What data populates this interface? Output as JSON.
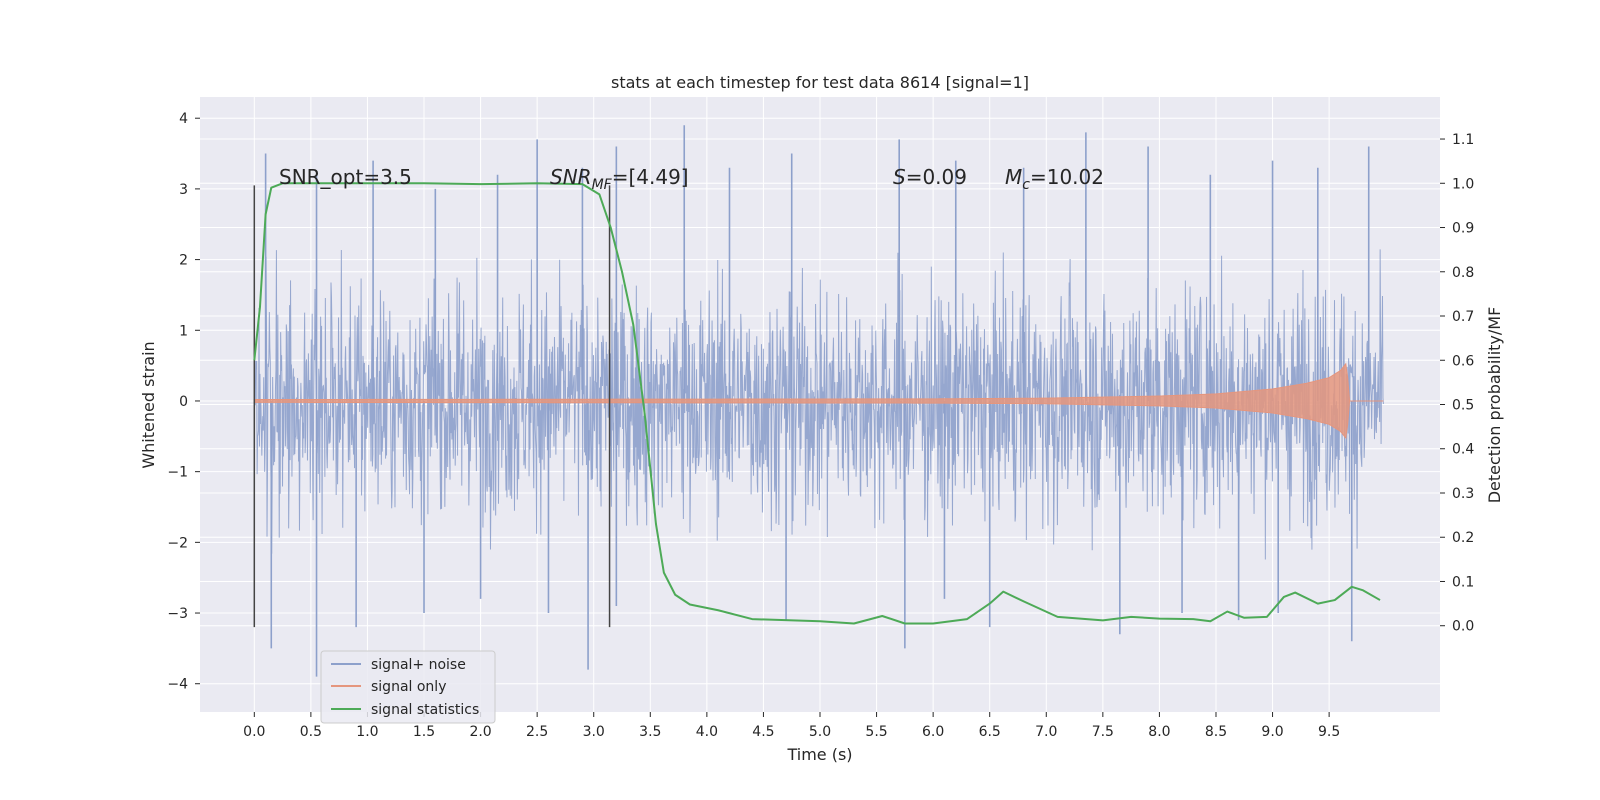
{
  "chart_data": {
    "type": "line",
    "title": "stats at each timestep for test data 8614 [signal=1]",
    "xlabel": "Time (s)",
    "ylabel": "Whitened strain",
    "y2label": "Detection probability/MF",
    "xlim": [
      -0.48,
      10.48
    ],
    "ylim": [
      -4.4,
      4.3
    ],
    "y2lim": [
      -0.195,
      1.195
    ],
    "grid": true,
    "x_ticks": [
      "0.0",
      "0.5",
      "1.0",
      "1.5",
      "2.0",
      "2.5",
      "3.0",
      "3.5",
      "4.0",
      "4.5",
      "5.0",
      "5.5",
      "6.0",
      "6.5",
      "7.0",
      "7.5",
      "8.0",
      "8.5",
      "9.0",
      "9.5"
    ],
    "x_tick_values": [
      0.0,
      0.5,
      1.0,
      1.5,
      2.0,
      2.5,
      3.0,
      3.5,
      4.0,
      4.5,
      5.0,
      5.5,
      6.0,
      6.5,
      7.0,
      7.5,
      8.0,
      8.5,
      9.0,
      9.5
    ],
    "y_ticks": [
      "4",
      "3",
      "2",
      "1",
      "0",
      "−1",
      "−2",
      "−3",
      "−4"
    ],
    "y_tick_values": [
      4,
      3,
      2,
      1,
      0,
      -1,
      -2,
      -3,
      -4
    ],
    "y2_ticks": [
      "1.1",
      "1.0",
      "0.9",
      "0.8",
      "0.7",
      "0.6",
      "0.5",
      "0.4",
      "0.3",
      "0.2",
      "0.1",
      "0.0"
    ],
    "y2_tick_values": [
      1.1,
      1.0,
      0.9,
      0.8,
      0.7,
      0.6,
      0.5,
      0.4,
      0.3,
      0.2,
      0.1,
      0.0
    ],
    "legend_position": "lower-left",
    "series": [
      {
        "name": "signal+ noise",
        "color": "#8da0cb",
        "axis": "left",
        "x_start": 0.0,
        "x_end": 9.98,
        "typical_range": [
          -1.8,
          1.8
        ],
        "peaks_up": [
          [
            0.1,
            3.5
          ],
          [
            0.55,
            3.2
          ],
          [
            1.05,
            3.4
          ],
          [
            1.6,
            3.0
          ],
          [
            2.15,
            3.2
          ],
          [
            2.5,
            3.7
          ],
          [
            2.9,
            3.3
          ],
          [
            3.2,
            3.6
          ],
          [
            3.8,
            3.9
          ],
          [
            4.2,
            3.3
          ],
          [
            4.75,
            3.5
          ],
          [
            5.7,
            3.7
          ],
          [
            6.2,
            3.4
          ],
          [
            6.8,
            3.3
          ],
          [
            7.35,
            3.8
          ],
          [
            7.9,
            3.6
          ],
          [
            8.45,
            3.2
          ],
          [
            9.0,
            3.4
          ],
          [
            9.4,
            3.3
          ],
          [
            9.85,
            3.6
          ]
        ],
        "peaks_down": [
          [
            0.15,
            -3.5
          ],
          [
            0.55,
            -3.9
          ],
          [
            0.9,
            -3.2
          ],
          [
            1.5,
            -3.0
          ],
          [
            2.0,
            -2.8
          ],
          [
            2.6,
            -3.0
          ],
          [
            2.95,
            -3.8
          ],
          [
            3.2,
            -2.9
          ],
          [
            4.7,
            -3.1
          ],
          [
            5.75,
            -3.5
          ],
          [
            6.1,
            -2.8
          ],
          [
            6.5,
            -3.2
          ],
          [
            7.65,
            -3.3
          ],
          [
            8.2,
            -3.0
          ],
          [
            8.7,
            -3.1
          ],
          [
            9.05,
            -3.0
          ],
          [
            9.7,
            -3.4
          ]
        ]
      },
      {
        "name": "signal only",
        "color": "#e5967e",
        "axis": "left",
        "x_start": 0.0,
        "x_end": 9.98,
        "envelope": [
          [
            0.0,
            0.02
          ],
          [
            6.0,
            0.03
          ],
          [
            7.0,
            0.04
          ],
          [
            8.0,
            0.07
          ],
          [
            8.5,
            0.1
          ],
          [
            9.0,
            0.17
          ],
          [
            9.3,
            0.25
          ],
          [
            9.5,
            0.33
          ],
          [
            9.6,
            0.43
          ],
          [
            9.66,
            0.55
          ],
          [
            9.67,
            0.0
          ],
          [
            9.98,
            0.0
          ]
        ]
      },
      {
        "name": "signal statistics",
        "color": "#4daa57",
        "axis": "right",
        "points": [
          [
            0.0,
            0.6
          ],
          [
            0.05,
            0.72
          ],
          [
            0.1,
            0.93
          ],
          [
            0.15,
            0.99
          ],
          [
            0.25,
            1.0
          ],
          [
            1.0,
            1.0
          ],
          [
            1.5,
            1.0
          ],
          [
            2.0,
            0.998
          ],
          [
            2.5,
            1.0
          ],
          [
            2.9,
            0.998
          ],
          [
            3.05,
            0.975
          ],
          [
            3.15,
            0.9
          ],
          [
            3.25,
            0.8
          ],
          [
            3.35,
            0.68
          ],
          [
            3.45,
            0.48
          ],
          [
            3.55,
            0.23
          ],
          [
            3.62,
            0.12
          ],
          [
            3.72,
            0.07
          ],
          [
            3.85,
            0.048
          ],
          [
            4.1,
            0.035
          ],
          [
            4.4,
            0.015
          ],
          [
            5.0,
            0.01
          ],
          [
            5.3,
            0.005
          ],
          [
            5.55,
            0.022
          ],
          [
            5.75,
            0.005
          ],
          [
            6.0,
            0.005
          ],
          [
            6.3,
            0.015
          ],
          [
            6.5,
            0.05
          ],
          [
            6.62,
            0.077
          ],
          [
            6.8,
            0.055
          ],
          [
            7.1,
            0.02
          ],
          [
            7.5,
            0.012
          ],
          [
            7.75,
            0.02
          ],
          [
            8.0,
            0.016
          ],
          [
            8.3,
            0.015
          ],
          [
            8.45,
            0.01
          ],
          [
            8.6,
            0.032
          ],
          [
            8.75,
            0.018
          ],
          [
            8.95,
            0.02
          ],
          [
            9.1,
            0.065
          ],
          [
            9.2,
            0.075
          ],
          [
            9.4,
            0.05
          ],
          [
            9.55,
            0.058
          ],
          [
            9.7,
            0.088
          ],
          [
            9.8,
            0.08
          ],
          [
            9.95,
            0.058
          ]
        ]
      }
    ],
    "vlines": [
      0.0,
      3.14
    ],
    "vline_color": "#444444",
    "vline_range": [
      -3.2,
      3.05
    ],
    "annotations": {
      "snr_opt": "SNR_opt=3.5",
      "snr_mf_main": "SNR",
      "snr_mf_sub": "MF",
      "snr_mf_rest": "=[4.49]",
      "s_main": "S",
      "s_rest": "=0.09",
      "mc_main": "M",
      "mc_sub": "c",
      "mc_rest": "=10.02"
    },
    "colors": {
      "plot_bg": "#eaeaf2",
      "grid": "#ffffff",
      "legend_bg": "#eaeaf2",
      "legend_border": "#cccccc"
    }
  }
}
